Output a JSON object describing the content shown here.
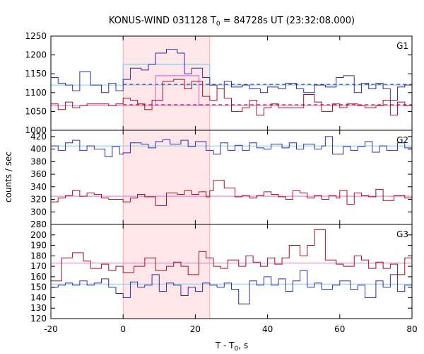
{
  "chart_data": {
    "type": "line",
    "title": "KONUS-WIND 031128 T",
    "title_sub": "0",
    "title_rest": " = 84728s UT (23:32:08.000)",
    "xlabel": "T - T",
    "xlabel_sub": "0",
    "xlabel_rest": ", s",
    "ylabel": "counts / sec",
    "xlim": [
      -20,
      80
    ],
    "xticks": [
      -20,
      0,
      20,
      40,
      60,
      80
    ],
    "xtick_labels": [
      "-20",
      "0",
      "20",
      "40",
      "60",
      "80"
    ],
    "highlight": {
      "x0": 0,
      "x1": 24,
      "color": "#ffe6e9",
      "edge": "#ff9999"
    },
    "series_colors": {
      "blue": "#2e2ea8",
      "red": "#a01020",
      "cyan": "#7fd0e8",
      "pink": "#e070d0",
      "blue_dash": "#2e2ea8",
      "red_dash": "#a01020"
    },
    "panels": [
      {
        "name": "G1",
        "ylim": [
          1000,
          1250
        ],
        "yticks": [
          1000,
          1050,
          1100,
          1150,
          1200,
          1250
        ],
        "ytick_labels": [
          "1000",
          "1050",
          "1100",
          "1150",
          "1200",
          "1250"
        ],
        "blue_steps": [
          [
            -20,
            1140
          ],
          [
            -18,
            1125
          ],
          [
            -16,
            1120
          ],
          [
            -14,
            1105
          ],
          [
            -12,
            1155
          ],
          [
            -9,
            1120
          ],
          [
            -6,
            1100
          ],
          [
            -4,
            1125
          ],
          [
            -2,
            1105
          ],
          [
            0,
            1135
          ],
          [
            2,
            1165
          ],
          [
            5,
            1160
          ],
          [
            7,
            1175
          ],
          [
            9,
            1205
          ],
          [
            12,
            1215
          ],
          [
            15,
            1205
          ],
          [
            17,
            1150
          ],
          [
            19,
            1165
          ],
          [
            22,
            1140
          ],
          [
            24,
            1120
          ],
          [
            26,
            1110
          ],
          [
            28,
            1130
          ],
          [
            30,
            1115
          ],
          [
            33,
            1120
          ],
          [
            35,
            1110
          ],
          [
            38,
            1100
          ],
          [
            40,
            1115
          ],
          [
            43,
            1110
          ],
          [
            45,
            1125
          ],
          [
            48,
            1110
          ],
          [
            50,
            1100
          ],
          [
            53,
            1120
          ],
          [
            56,
            1115
          ],
          [
            59,
            1140
          ],
          [
            61,
            1145
          ],
          [
            64,
            1100
          ],
          [
            66,
            1125
          ],
          [
            68,
            1110
          ],
          [
            70,
            1125
          ],
          [
            72,
            1110
          ],
          [
            74,
            1080
          ],
          [
            76,
            1115
          ],
          [
            78,
            1120
          ]
        ],
        "red_steps": [
          [
            -20,
            1070
          ],
          [
            -18,
            1055
          ],
          [
            -16,
            1075
          ],
          [
            -14,
            1060
          ],
          [
            -12,
            1065
          ],
          [
            -10,
            1070
          ],
          [
            -7,
            1070
          ],
          [
            -4,
            1065
          ],
          [
            -2,
            1070
          ],
          [
            0,
            1085
          ],
          [
            2,
            1080
          ],
          [
            4,
            1070
          ],
          [
            6,
            1055
          ],
          [
            8,
            1080
          ],
          [
            11,
            1130
          ],
          [
            14,
            1135
          ],
          [
            17,
            1110
          ],
          [
            19,
            1130
          ],
          [
            22,
            1090
          ],
          [
            24,
            1080
          ],
          [
            26,
            1110
          ],
          [
            28,
            1085
          ],
          [
            30,
            1050
          ],
          [
            33,
            1060
          ],
          [
            35,
            1080
          ],
          [
            37,
            1040
          ],
          [
            39,
            1060
          ],
          [
            41,
            1070
          ],
          [
            43,
            1060
          ],
          [
            45,
            1060
          ],
          [
            47,
            1060
          ],
          [
            50,
            1095
          ],
          [
            53,
            1075
          ],
          [
            55,
            1050
          ],
          [
            58,
            1070
          ],
          [
            60,
            1060
          ],
          [
            62,
            1070
          ],
          [
            65,
            1065
          ],
          [
            67,
            1060
          ],
          [
            70,
            1065
          ],
          [
            72,
            1080
          ],
          [
            74,
            1040
          ],
          [
            76,
            1075
          ],
          [
            78,
            1065
          ]
        ],
        "cyan_bg": 1120,
        "cyan_box": {
          "x0": 0,
          "x1": 24,
          "y": 1175
        },
        "pink_bg": 1065,
        "pink_box": {
          "x0": 9,
          "x1": 21,
          "y": 1145
        },
        "blue_dash": 1122,
        "red_dash": 1068
      },
      {
        "name": "G2",
        "ylim": [
          280,
          430
        ],
        "yticks": [
          280,
          300,
          320,
          340,
          360,
          380,
          400,
          420
        ],
        "ytick_labels": [
          "280",
          "300",
          "320",
          "340",
          "360",
          "380",
          "400",
          "420"
        ],
        "blue_steps": [
          [
            -20,
            405
          ],
          [
            -18,
            398
          ],
          [
            -16,
            410
          ],
          [
            -14,
            414
          ],
          [
            -12,
            398
          ],
          [
            -10,
            405
          ],
          [
            -8,
            400
          ],
          [
            -5,
            388
          ],
          [
            -3,
            404
          ],
          [
            -1,
            392
          ],
          [
            0,
            394
          ],
          [
            2,
            410
          ],
          [
            5,
            408
          ],
          [
            7,
            402
          ],
          [
            9,
            412
          ],
          [
            11,
            415
          ],
          [
            13,
            408
          ],
          [
            16,
            414
          ],
          [
            18,
            404
          ],
          [
            20,
            412
          ],
          [
            23,
            398
          ],
          [
            25,
            392
          ],
          [
            27,
            410
          ],
          [
            29,
            398
          ],
          [
            31,
            406
          ],
          [
            33,
            398
          ],
          [
            35,
            410
          ],
          [
            37,
            402
          ],
          [
            39,
            400
          ],
          [
            41,
            408
          ],
          [
            44,
            402
          ],
          [
            46,
            410
          ],
          [
            48,
            400
          ],
          [
            50,
            408
          ],
          [
            53,
            400
          ],
          [
            55,
            405
          ],
          [
            56,
            420
          ],
          [
            58,
            392
          ],
          [
            61,
            404
          ],
          [
            63,
            398
          ],
          [
            65,
            404
          ],
          [
            67,
            412
          ],
          [
            69,
            395
          ],
          [
            71,
            405
          ],
          [
            73,
            398
          ],
          [
            76,
            410
          ],
          [
            78,
            402
          ]
        ],
        "red_steps": [
          [
            -20,
            316
          ],
          [
            -18,
            322
          ],
          [
            -16,
            326
          ],
          [
            -14,
            334
          ],
          [
            -12,
            325
          ],
          [
            -10,
            330
          ],
          [
            -8,
            328
          ],
          [
            -6,
            322
          ],
          [
            -4,
            320
          ],
          [
            0,
            316
          ],
          [
            2,
            322
          ],
          [
            4,
            328
          ],
          [
            6,
            324
          ],
          [
            9,
            310
          ],
          [
            12,
            330
          ],
          [
            15,
            328
          ],
          [
            17,
            334
          ],
          [
            19,
            328
          ],
          [
            21,
            332
          ],
          [
            23,
            324
          ],
          [
            24,
            334
          ],
          [
            25,
            350
          ],
          [
            28,
            338
          ],
          [
            31,
            324
          ],
          [
            33,
            326
          ],
          [
            35,
            322
          ],
          [
            37,
            326
          ],
          [
            39,
            332
          ],
          [
            41,
            328
          ],
          [
            43,
            324
          ],
          [
            45,
            320
          ],
          [
            47,
            334
          ],
          [
            49,
            330
          ],
          [
            51,
            322
          ],
          [
            53,
            326
          ],
          [
            55,
            320
          ],
          [
            57,
            326
          ],
          [
            59,
            322
          ],
          [
            60,
            334
          ],
          [
            62,
            312
          ],
          [
            64,
            330
          ],
          [
            66,
            326
          ],
          [
            68,
            324
          ],
          [
            70,
            336
          ],
          [
            72,
            318
          ],
          [
            75,
            326
          ],
          [
            78,
            322
          ]
        ],
        "cyan_bg": 405,
        "pink_bg": 325
      },
      {
        "name": "G3",
        "ylim": [
          120,
          210
        ],
        "yticks": [
          120,
          130,
          140,
          150,
          160,
          170,
          180,
          190,
          200
        ],
        "ytick_labels": [
          "120",
          "130",
          "140",
          "150",
          "160",
          "170",
          "180",
          "190",
          "200"
        ],
        "blue_steps": [
          [
            -20,
            150
          ],
          [
            -18,
            152
          ],
          [
            -16,
            154
          ],
          [
            -14,
            152
          ],
          [
            -12,
            156
          ],
          [
            -10,
            152
          ],
          [
            -8,
            154
          ],
          [
            -6,
            158
          ],
          [
            -4,
            150
          ],
          [
            -2,
            144
          ],
          [
            0,
            140
          ],
          [
            2,
            155
          ],
          [
            4,
            150
          ],
          [
            6,
            152
          ],
          [
            8,
            162
          ],
          [
            10,
            146
          ],
          [
            12,
            154
          ],
          [
            14,
            152
          ],
          [
            16,
            142
          ],
          [
            18,
            150
          ],
          [
            20,
            146
          ],
          [
            22,
            154
          ],
          [
            24,
            152
          ],
          [
            26,
            150
          ],
          [
            28,
            154
          ],
          [
            30,
            148
          ],
          [
            32,
            134
          ],
          [
            35,
            156
          ],
          [
            37,
            152
          ],
          [
            39,
            160
          ],
          [
            41,
            152
          ],
          [
            43,
            158
          ],
          [
            45,
            146
          ],
          [
            47,
            156
          ],
          [
            49,
            166
          ],
          [
            51,
            150
          ],
          [
            53,
            154
          ],
          [
            55,
            148
          ],
          [
            58,
            152
          ],
          [
            60,
            156
          ],
          [
            63,
            148
          ],
          [
            65,
            152
          ],
          [
            67,
            140
          ],
          [
            70,
            156
          ],
          [
            72,
            150
          ],
          [
            74,
            162
          ],
          [
            76,
            146
          ],
          [
            78,
            152
          ]
        ],
        "red_steps": [
          [
            -20,
            156
          ],
          [
            -17,
            178
          ],
          [
            -14,
            183
          ],
          [
            -11,
            175
          ],
          [
            -9,
            168
          ],
          [
            -6,
            172
          ],
          [
            -4,
            166
          ],
          [
            -2,
            170
          ],
          [
            0,
            164
          ],
          [
            3,
            170
          ],
          [
            6,
            178
          ],
          [
            9,
            166
          ],
          [
            12,
            170
          ],
          [
            14,
            174
          ],
          [
            16,
            170
          ],
          [
            18,
            162
          ],
          [
            21,
            184
          ],
          [
            23,
            178
          ],
          [
            25,
            170
          ],
          [
            27,
            168
          ],
          [
            29,
            176
          ],
          [
            32,
            170
          ],
          [
            34,
            180
          ],
          [
            36,
            174
          ],
          [
            38,
            170
          ],
          [
            40,
            178
          ],
          [
            42,
            172
          ],
          [
            44,
            178
          ],
          [
            46,
            190
          ],
          [
            49,
            180
          ],
          [
            51,
            190
          ],
          [
            53,
            205
          ],
          [
            56,
            176
          ],
          [
            59,
            172
          ],
          [
            61,
            170
          ],
          [
            64,
            180
          ],
          [
            66,
            176
          ],
          [
            68,
            168
          ],
          [
            70,
            174
          ],
          [
            72,
            168
          ],
          [
            74,
            172
          ],
          [
            76,
            162
          ],
          [
            78,
            178
          ]
        ],
        "cyan_bg": 153,
        "pink_bg": 173
      }
    ]
  }
}
